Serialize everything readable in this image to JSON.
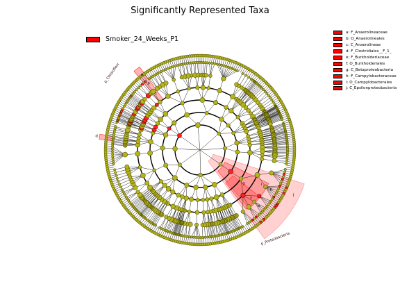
{
  "chart_data": {
    "type": "cladogram",
    "title": "Significantly Represented Taxa",
    "series": [
      {
        "name": "Smoker_24_Weeks_P1",
        "color": "#ff0000"
      }
    ],
    "node_color": "#b4b41e",
    "highlight_color": "#ff0000",
    "clades": [
      {
        "tag": "a",
        "name": "F_Anaerolineaceae"
      },
      {
        "tag": "b",
        "name": "O_Anaerolineales"
      },
      {
        "tag": "c",
        "name": "C_Anaerolineae"
      },
      {
        "tag": "d",
        "name": "F_Clostridiales__F_1_"
      },
      {
        "tag": "e",
        "name": "F_Burkholderiaceae"
      },
      {
        "tag": "f",
        "name": "O_Burkholderiales"
      },
      {
        "tag": "g",
        "name": "C_Betaproteobacteria"
      },
      {
        "tag": "h",
        "name": "F_Campylobacteraceae"
      },
      {
        "tag": "i",
        "name": "O_Campylobacterales"
      },
      {
        "tag": "j",
        "name": "C_Epsilonproteobacteria"
      }
    ],
    "legend_entries": [
      {
        "label": "a: F_Anaerolineaceae"
      },
      {
        "label": "b: O_Anaerolineales"
      },
      {
        "label": "c: C_Anaerolineae"
      },
      {
        "label": "d: F_Clostridiales__F_1_"
      },
      {
        "label": "e: F_Burkholderiaceae"
      },
      {
        "label": "f: O_Burkholderiales"
      },
      {
        "label": "g: C_Betaproteobacteria"
      },
      {
        "label": "h: F_Campylobacteraceae"
      },
      {
        "label": "i: O_Campylobacterales"
      },
      {
        "label": "j: C_Epsilonproteobacteria"
      }
    ],
    "phylum_labels": [
      {
        "text": "p_Chloroflexi"
      },
      {
        "text": "p_Proteobacteria"
      }
    ]
  }
}
